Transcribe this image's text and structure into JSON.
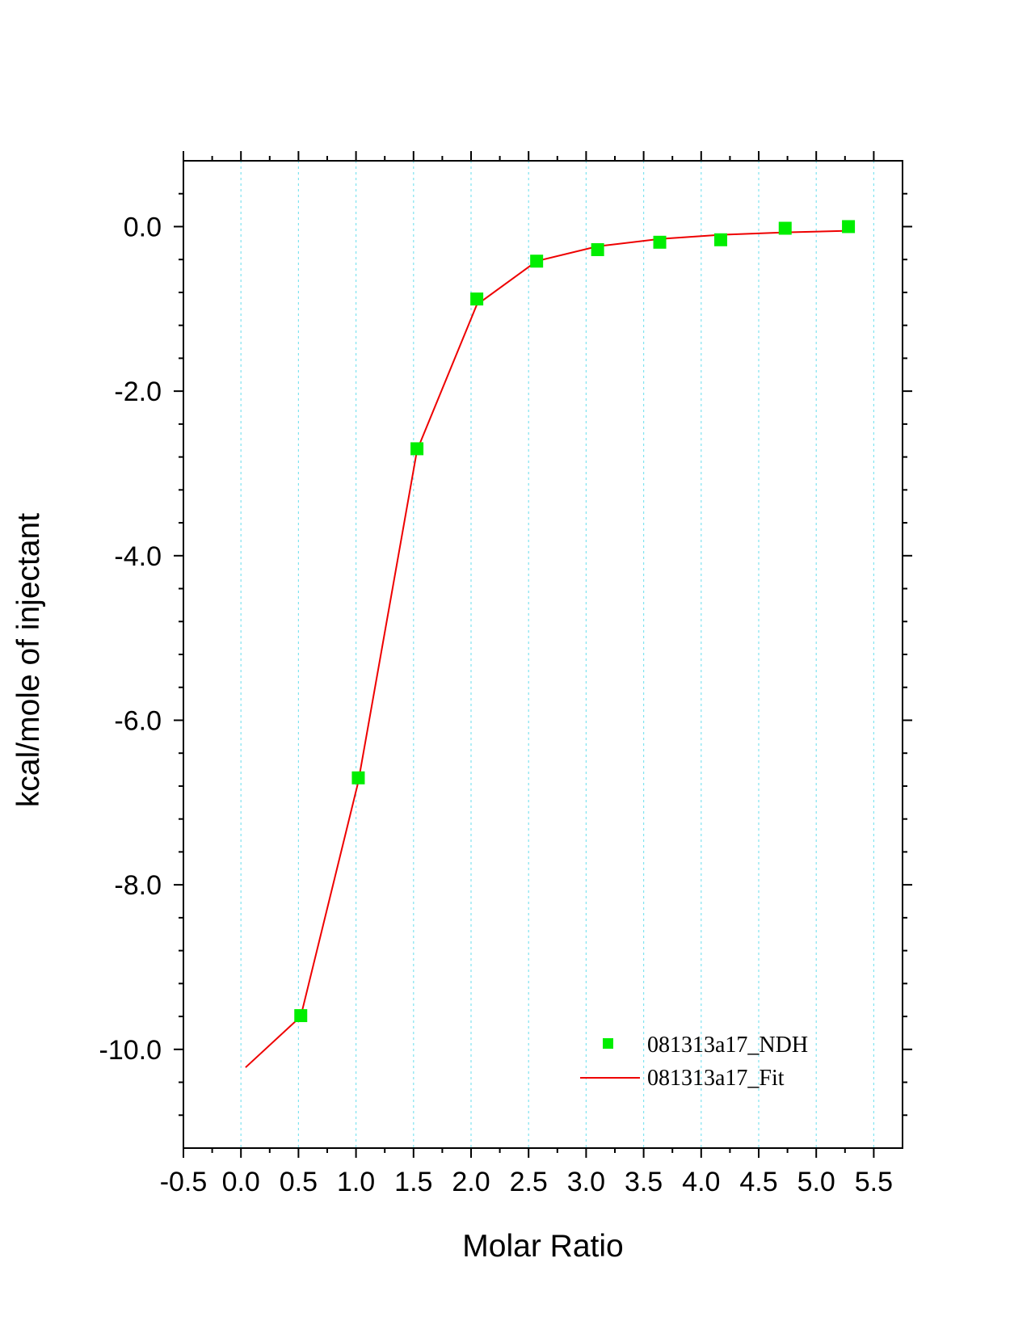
{
  "chart_data": {
    "type": "scatter",
    "xlabel": "Molar Ratio",
    "ylabel": "kcal/mole of injectant",
    "xlim": [
      -0.5,
      5.75
    ],
    "ylim": [
      -11.2,
      0.8
    ],
    "xticks": [
      -0.5,
      0.0,
      0.5,
      1.0,
      1.5,
      2.0,
      2.5,
      3.0,
      3.5,
      4.0,
      4.5,
      5.0,
      5.5
    ],
    "xtick_labels": [
      "-0.5",
      "0.0",
      "0.5",
      "1.0",
      "1.5",
      "2.0",
      "2.5",
      "3.0",
      "3.5",
      "4.0",
      "4.5",
      "5.0",
      "5.5"
    ],
    "yticks": [
      0.0,
      -2.0,
      -4.0,
      -6.0,
      -8.0,
      -10.0
    ],
    "ytick_labels": [
      "0.0",
      "-2.0",
      "-4.0",
      "-6.0",
      "-8.0",
      "-10.0"
    ],
    "grid": "vertical dotted",
    "legend_position": "bottom-right",
    "series": [
      {
        "name": "081313a17_NDH",
        "kind": "scatter",
        "marker": "square",
        "color": "#00ee00",
        "x": [
          0.52,
          1.02,
          1.53,
          2.05,
          2.57,
          3.1,
          3.64,
          4.17,
          4.73,
          5.28
        ],
        "y": [
          -9.59,
          -6.7,
          -2.7,
          -0.88,
          -0.42,
          -0.28,
          -0.19,
          -0.16,
          -0.02,
          0.0
        ]
      },
      {
        "name": "081313a17_Fit",
        "kind": "line",
        "color": "#ee0000",
        "x": [
          0.04,
          0.52,
          1.02,
          1.53,
          2.05,
          2.57,
          3.1,
          3.64,
          4.17,
          4.73,
          5.28
        ],
        "y": [
          -10.22,
          -9.6,
          -6.75,
          -2.72,
          -0.95,
          -0.42,
          -0.24,
          -0.15,
          -0.1,
          -0.07,
          -0.05
        ]
      }
    ]
  }
}
